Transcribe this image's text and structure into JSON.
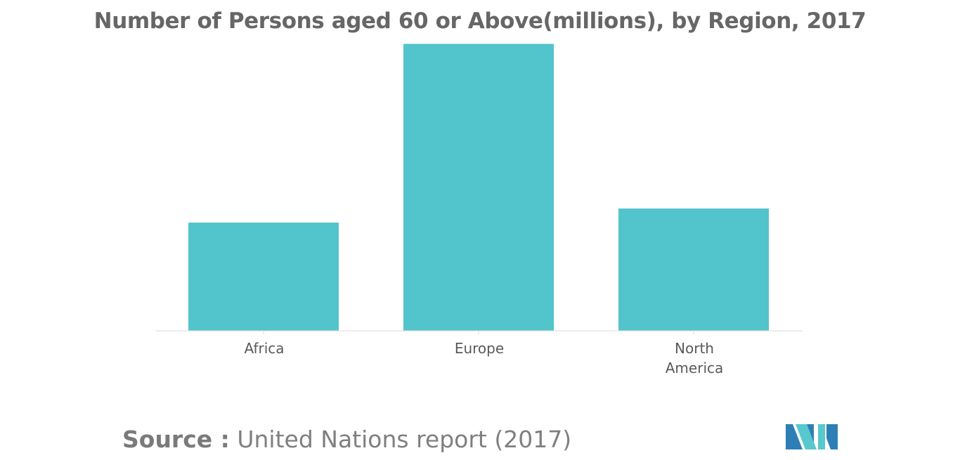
{
  "title": "Number of Persons aged 60 or Above(millions), by Region, 2017",
  "source": {
    "label": "Source :",
    "text": "United Nations report (2017)"
  },
  "colors": {
    "bar": "#52c4cb",
    "axis": "#d9d9d9",
    "tick_label": "#595959",
    "logo_dark": "#2e7fb5",
    "logo_light": "#58c8cf"
  },
  "logo": {
    "icon": "mordor-intelligence-logo-icon"
  },
  "chart_data": {
    "type": "bar",
    "title": "Number of Persons aged 60 or Above(millions), by Region, 2017",
    "categories": [
      [
        "Africa"
      ],
      [
        "Europe"
      ],
      [
        "North",
        "America"
      ]
    ],
    "values": [
      69,
      183,
      78
    ],
    "ylim": [
      0,
      185
    ],
    "xlabel": "",
    "ylabel": "",
    "grid": false,
    "legend": "none"
  }
}
